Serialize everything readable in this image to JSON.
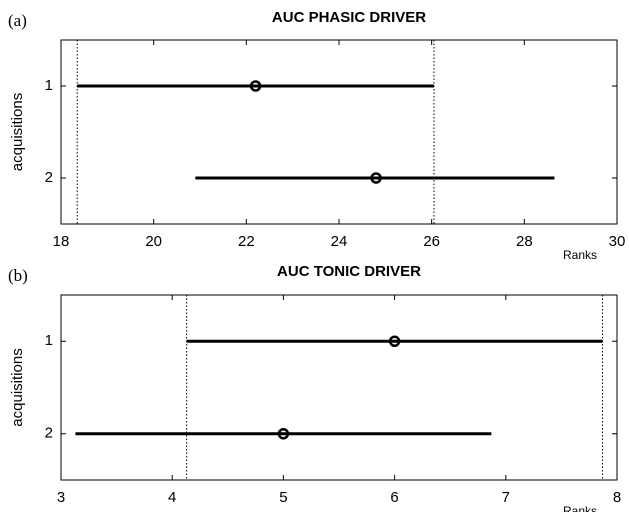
{
  "chart_data": [
    {
      "type": "interval",
      "panel_label": "(a)",
      "title": "AUC PHASIC DRIVER",
      "xlabel": "Ranks",
      "ylabel": "acquisitions",
      "categories": [
        "1",
        "2"
      ],
      "values": [
        22.2,
        24.8
      ],
      "lower": [
        18.35,
        20.9
      ],
      "upper": [
        26.05,
        28.65
      ],
      "color": "#000000",
      "xlim": [
        18,
        30
      ],
      "xticks": [
        18,
        20,
        22,
        24,
        26,
        28,
        30
      ]
    },
    {
      "type": "interval",
      "panel_label": "(b)",
      "title": "AUC TONIC DRIVER",
      "xlabel": "Ranks",
      "ylabel": "acquisitions",
      "categories": [
        "1",
        "2"
      ],
      "values": [
        6.0,
        5.0
      ],
      "lower": [
        4.13,
        3.13
      ],
      "upper": [
        7.87,
        6.87
      ],
      "color": "#000000",
      "xlim": [
        3,
        8
      ],
      "xticks": [
        3,
        4,
        5,
        6,
        7,
        8
      ]
    }
  ]
}
